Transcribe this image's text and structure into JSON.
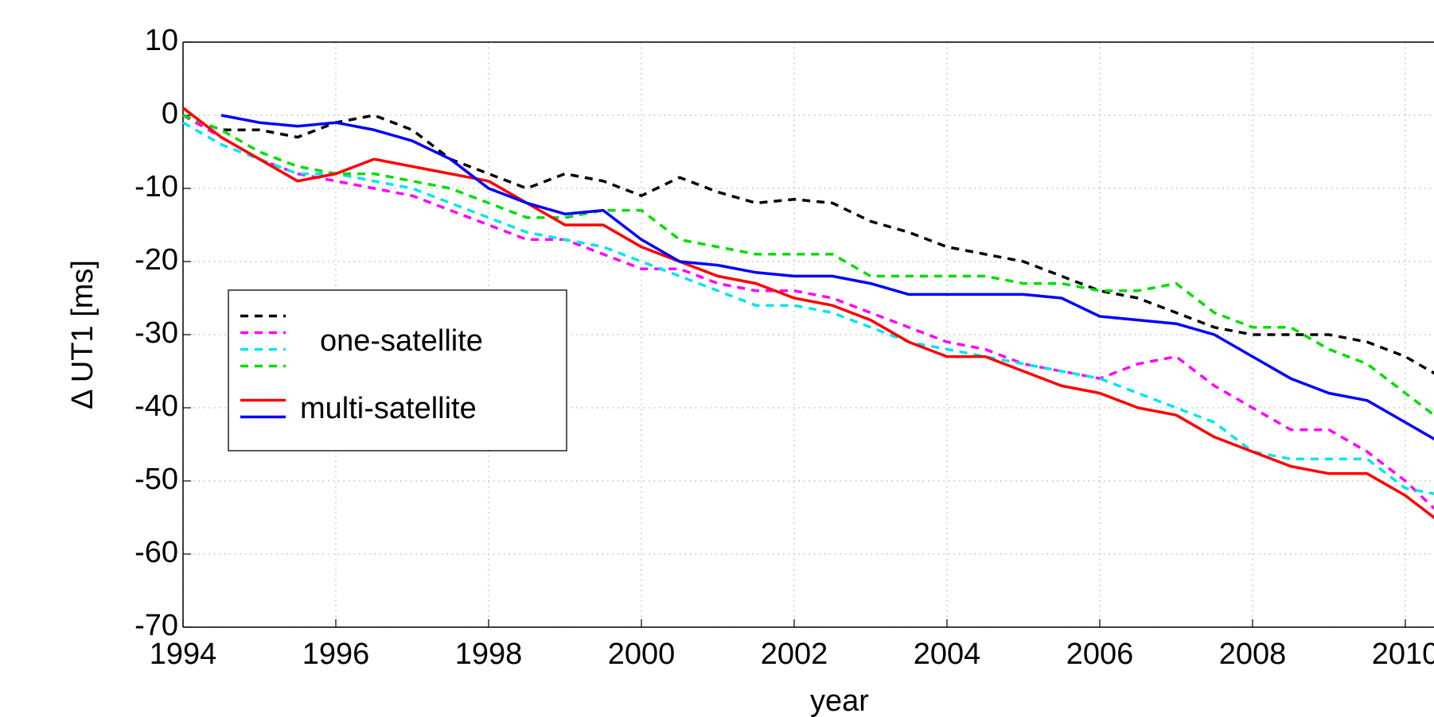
{
  "chart_data": {
    "type": "line",
    "x_label": "year",
    "y_label": "Δ UT1 [ms]",
    "xlim": [
      1994,
      2012
    ],
    "ylim": [
      -70,
      10
    ],
    "xticks": [
      1994,
      1996,
      1998,
      2000,
      2002,
      2004,
      2006,
      2008,
      2010
    ],
    "yticks": [
      10,
      0,
      -10,
      -20,
      -30,
      -40,
      -50,
      -60,
      -70
    ],
    "grid": true,
    "legend": "center-left",
    "x": [
      1994,
      1994.5,
      1995,
      1995.5,
      1996,
      1996.5,
      1997,
      1997.5,
      1998,
      1998.5,
      1999,
      1999.5,
      2000,
      2000.5,
      2001,
      2001.5,
      2002,
      2002.5,
      2003,
      2003.5,
      2004,
      2004.5,
      2005,
      2005.5,
      2006,
      2006.5,
      2007,
      2007.5,
      2008,
      2008.5,
      2009,
      2009.5,
      2010,
      2010.5
    ],
    "series": [
      {
        "name": "one-satellite",
        "color": "#000000",
        "line_style": "dashed",
        "values": [
          0,
          -2,
          -2,
          -3,
          -1,
          0,
          -2,
          -6,
          -8,
          -10,
          -8,
          -9,
          -11,
          -8.5,
          -10.5,
          -12,
          -11.5,
          -12,
          -14.5,
          -16,
          -18,
          -19,
          -20,
          -22,
          -24,
          -25,
          -27,
          -29,
          -30,
          -30,
          -30,
          -31,
          -33,
          -36
        ]
      },
      {
        "name": "one-satellite",
        "color": "#ff00ff",
        "line_style": "dashed",
        "values": [
          0,
          -3,
          -6,
          -8,
          -9,
          -10,
          -11,
          -13,
          -15,
          -17,
          -17,
          -19,
          -21,
          -21,
          -23,
          -24,
          -24,
          -25,
          -27,
          -29,
          -31,
          -32,
          -34,
          -35,
          -36,
          -34,
          -33,
          -37,
          -40,
          -43,
          -43,
          -46,
          -50,
          -55
        ]
      },
      {
        "name": "one-satellite",
        "color": "#00e5ee",
        "line_style": "dashed",
        "values": [
          -1,
          -4,
          -6,
          -8,
          -8,
          -9,
          -10,
          -12,
          -14,
          -16,
          -17,
          -18,
          -20,
          -22,
          -24,
          -26,
          -26,
          -27,
          -29,
          -31,
          -32,
          -33,
          -34,
          -35,
          -36,
          -38,
          -40,
          -42,
          -46,
          -47,
          -47,
          -47,
          -51,
          -52
        ]
      },
      {
        "name": "one-satellite",
        "color": "#00dd00",
        "line_style": "dashed",
        "values": [
          0,
          -2,
          -5,
          -7,
          -8,
          -8,
          -9,
          -10,
          -12,
          -14,
          -14,
          -13,
          -13,
          -17,
          -18,
          -19,
          -19,
          -19,
          -22,
          -22,
          -22,
          -22,
          -23,
          -23,
          -24,
          -24,
          -23,
          -27,
          -29,
          -29,
          -32,
          -34,
          -38,
          -42
        ]
      },
      {
        "name": "multi-satellite",
        "color": "#ff0000",
        "line_style": "solid",
        "values": [
          1,
          -3,
          -6,
          -9,
          -8,
          -6,
          -7,
          -8,
          -9,
          -12,
          -15,
          -15,
          -18,
          -20,
          -22,
          -23,
          -25,
          -26,
          -28,
          -31,
          -33,
          -33,
          -35,
          -37,
          -38,
          -40,
          -41,
          -44,
          -46,
          -48,
          -49,
          -49,
          -52,
          -56
        ]
      },
      {
        "name": "multi-satellite",
        "color": "#0000ff",
        "line_style": "solid",
        "values": [
          null,
          0,
          -1,
          -1.5,
          -1,
          -2,
          -3.5,
          -6,
          -10,
          -12,
          -13.5,
          -13,
          -17,
          -20,
          -20.5,
          -21.5,
          -22,
          -22,
          -23,
          -24.5,
          -24.5,
          -24.5,
          -24.5,
          -25,
          -27.5,
          -28,
          -28.5,
          -30,
          -33,
          -36,
          -38,
          -39,
          -42,
          -45
        ]
      }
    ]
  }
}
